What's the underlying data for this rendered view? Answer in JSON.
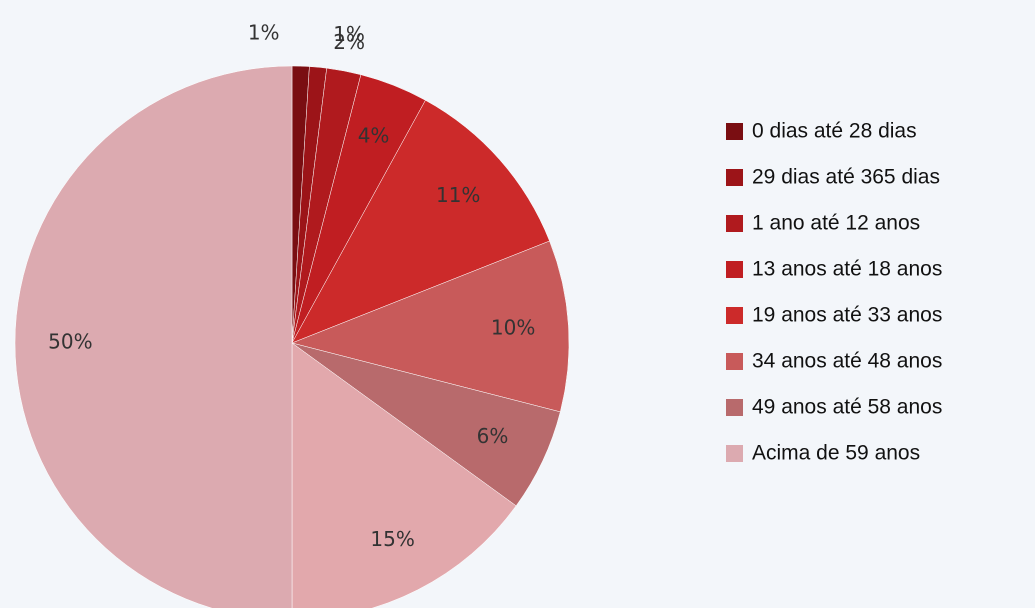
{
  "chart_data": {
    "type": "pie",
    "categories": [
      "0 dias até 28 dias",
      "29 dias até 365 dias",
      "1 ano até 12 anos",
      "13 anos até 18 anos",
      "19 anos até 33 anos",
      "34 anos até 48 anos",
      "49 anos até 58 anos",
      null,
      "Acima de 59 anos"
    ],
    "values": [
      1,
      1,
      2,
      4,
      11,
      10,
      6,
      15,
      50
    ],
    "value_labels": [
      "1%",
      "1%",
      "2%",
      "4%",
      "11%",
      "10%",
      "6%",
      "15%",
      "50%"
    ],
    "colors": [
      "#7a0e12",
      "#9c1418",
      "#b01a1e",
      "#c01e22",
      "#cc2a2a",
      "#c85a5a",
      "#b86a6c",
      "#e2a8ac",
      "#dcaab0"
    ]
  }
}
